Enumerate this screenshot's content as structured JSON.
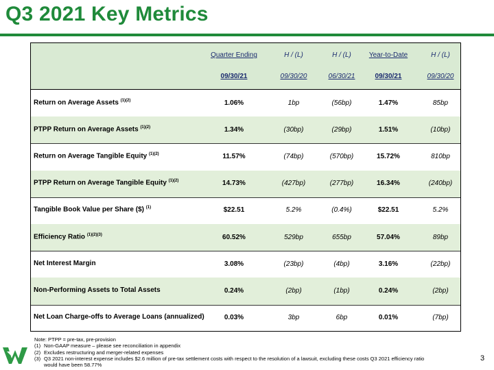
{
  "title": "Q3 2021 Key Metrics",
  "table": {
    "header_top": [
      "Quarter Ending",
      "H / (L)",
      "H / (L)",
      "Year-to-Date",
      "H / (L)"
    ],
    "header_bottom": [
      "09/30/21",
      "09/30/20",
      "06/30/21",
      "09/30/21",
      "09/30/20"
    ],
    "rows": [
      {
        "label": "Return on Average Assets",
        "note": "(1)(2)",
        "values": [
          "1.06%",
          "1bp",
          "(56bp)",
          "1.47%",
          "85bp"
        ]
      },
      {
        "label": "PTPP Return on Average Assets",
        "note": "(1)(2)",
        "values": [
          "1.34%",
          "(30bp)",
          "(29bp)",
          "1.51%",
          "(10bp)"
        ]
      },
      {
        "label": "Return on Average Tangible Equity",
        "note": "(1)(2)",
        "values": [
          "11.57%",
          "(74bp)",
          "(570bp)",
          "15.72%",
          "810bp"
        ]
      },
      {
        "label": "PTPP Return on Average Tangible Equity",
        "note": "(1)(2)",
        "values": [
          "14.73%",
          "(427bp)",
          "(277bp)",
          "16.34%",
          "(240bp)"
        ]
      },
      {
        "label": "Tangible Book Value per Share ($)",
        "note": "(1)",
        "values": [
          "$22.51",
          "5.2%",
          "(0.4%)",
          "$22.51",
          "5.2%"
        ]
      },
      {
        "label": "Efficiency Ratio",
        "note": "(1)(2)(3)",
        "values": [
          "60.52%",
          "529bp",
          "655bp",
          "57.04%",
          "89bp"
        ]
      },
      {
        "label": "Net Interest Margin",
        "note": "",
        "values": [
          "3.08%",
          "(23bp)",
          "(4bp)",
          "3.16%",
          "(22bp)"
        ]
      },
      {
        "label": "Non-Performing Assets to Total Assets",
        "note": "",
        "values": [
          "0.24%",
          "(2bp)",
          "(1bp)",
          "0.24%",
          "(2bp)"
        ]
      },
      {
        "label": "Net Loan Charge-offs to Average Loans (annualized)",
        "note": "",
        "values": [
          "0.03%",
          "3bp",
          "6bp",
          "0.01%",
          "(7bp)"
        ]
      }
    ]
  },
  "footnotes": {
    "note_line": "Note:  PTPP = pre-tax, pre-provision",
    "items": [
      {
        "num": "(1)",
        "text": "Non-GAAP measure – please see reconciliation in appendix"
      },
      {
        "num": "(2)",
        "text": "Excludes restructuring and merger-related expenses"
      },
      {
        "num": "(3)",
        "text": "Q3 2021 non-interest expense includes $2.6 million of pre-tax settlement costs with respect to the resolution of a lawsuit, excluding these costs Q3 2021 efficiency ratio"
      },
      {
        "num": "",
        "text": "would have been 58.77%"
      }
    ]
  },
  "page_number": "3",
  "colors": {
    "accent_green": "#1f8a3a",
    "header_text": "#1a2a6e",
    "row_alt": "#e2efda"
  },
  "logo_icon": "wintrust-logo-icon"
}
